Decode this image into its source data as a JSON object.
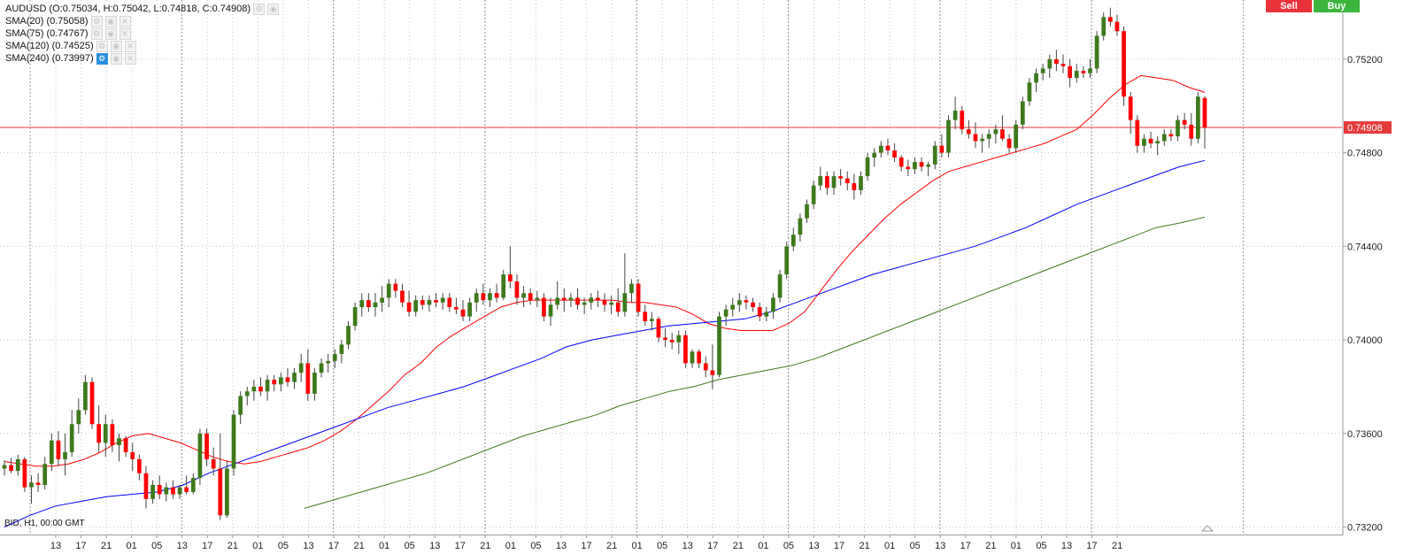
{
  "legend": {
    "instrument": "AUDUSD (O:0.75034, H:0.75042, L:0.74818, C:0.74908)",
    "sma20": "SMA(20) (0.75058)",
    "sma75": "SMA(75) (0.74767)",
    "sma120": "SMA(120) (0.74525)",
    "sma240": "SMA(240) (0.73997)"
  },
  "buttons": {
    "sell": "Sell",
    "buy": "Buy"
  },
  "footer": "BID, H1, 00:00 GMT",
  "colors": {
    "bull": "#3c7a1a",
    "bear": "#ff0000",
    "sma20": "#ff0000",
    "sma75": "#0000ff",
    "sma120": "#3c7a1a",
    "price_line": "#e53a3a",
    "price_tag": "#e53a3a"
  },
  "chart_data": {
    "type": "candlestick",
    "symbol": "AUDUSD",
    "timeframe": "H1",
    "y_ticks": [
      0.732,
      0.736,
      0.74,
      0.744,
      0.748,
      0.752
    ],
    "y_tick_labels": [
      "0.73200",
      "0.73600",
      "0.74000",
      "0.74400",
      "0.74800",
      "0.75200"
    ],
    "ylim": [
      0.73168,
      0.75453
    ],
    "current_price": 0.74908,
    "current_price_label": "0.74908",
    "x_tick_labels": [
      "13",
      "17",
      "21",
      "01",
      "05",
      "13",
      "17",
      "21",
      "01",
      "05",
      "13",
      "17",
      "21",
      "01",
      "05",
      "13",
      "17",
      "21",
      "01",
      "05",
      "13",
      "17",
      "21",
      "01",
      "05",
      "13",
      "17",
      "21",
      "01",
      "05",
      "13",
      "17",
      "21",
      "01",
      "05",
      "13",
      "17",
      "21",
      "01",
      "05",
      "13",
      "17",
      "21"
    ],
    "day_separators": 9,
    "grid": "dotted",
    "candles": [
      [
        0.7345,
        0.73485,
        0.7342,
        0.73465
      ],
      [
        0.73465,
        0.73495,
        0.7343,
        0.7344
      ],
      [
        0.7344,
        0.7351,
        0.7342,
        0.7349
      ],
      [
        0.7349,
        0.735,
        0.7335,
        0.7337
      ],
      [
        0.7337,
        0.7342,
        0.733,
        0.7339
      ],
      [
        0.7339,
        0.7343,
        0.7335,
        0.7338
      ],
      [
        0.7338,
        0.735,
        0.7336,
        0.7347
      ],
      [
        0.7347,
        0.736,
        0.7344,
        0.7357
      ],
      [
        0.7357,
        0.7361,
        0.7346,
        0.7349
      ],
      [
        0.7349,
        0.736,
        0.7342,
        0.7352
      ],
      [
        0.7352,
        0.737,
        0.735,
        0.7364
      ],
      [
        0.7364,
        0.7375,
        0.736,
        0.737
      ],
      [
        0.737,
        0.7385,
        0.7368,
        0.7382
      ],
      [
        0.7382,
        0.7384,
        0.7362,
        0.7364
      ],
      [
        0.7364,
        0.7372,
        0.7352,
        0.7356
      ],
      [
        0.7356,
        0.7368,
        0.735,
        0.7364
      ],
      [
        0.7364,
        0.7366,
        0.7352,
        0.7355
      ],
      [
        0.7355,
        0.736,
        0.7348,
        0.7358
      ],
      [
        0.7358,
        0.7359,
        0.735,
        0.7352
      ],
      [
        0.7352,
        0.7356,
        0.7344,
        0.7349
      ],
      [
        0.7349,
        0.7351,
        0.734,
        0.7343
      ],
      [
        0.7343,
        0.7346,
        0.7328,
        0.7332
      ],
      [
        0.7332,
        0.734,
        0.733,
        0.7338
      ],
      [
        0.7338,
        0.7342,
        0.7332,
        0.7334
      ],
      [
        0.7334,
        0.7339,
        0.7331,
        0.7337
      ],
      [
        0.7337,
        0.734,
        0.7332,
        0.7334
      ],
      [
        0.7334,
        0.7338,
        0.7332,
        0.7337
      ],
      [
        0.7337,
        0.7342,
        0.7334,
        0.7335
      ],
      [
        0.7335,
        0.7343,
        0.7334,
        0.7341
      ],
      [
        0.7341,
        0.7362,
        0.7338,
        0.736
      ],
      [
        0.736,
        0.7362,
        0.7346,
        0.7349
      ],
      [
        0.7349,
        0.7354,
        0.7342,
        0.7345
      ],
      [
        0.7345,
        0.736,
        0.7323,
        0.7325
      ],
      [
        0.7325,
        0.7348,
        0.7324,
        0.7345
      ],
      [
        0.7345,
        0.737,
        0.7342,
        0.7368
      ],
      [
        0.7368,
        0.7378,
        0.7364,
        0.7376
      ],
      [
        0.7376,
        0.738,
        0.7372,
        0.7378
      ],
      [
        0.7378,
        0.7383,
        0.7374,
        0.738
      ],
      [
        0.738,
        0.7384,
        0.7376,
        0.7378
      ],
      [
        0.7378,
        0.7385,
        0.7374,
        0.7383
      ],
      [
        0.7383,
        0.7385,
        0.7378,
        0.7381
      ],
      [
        0.7381,
        0.7386,
        0.7378,
        0.7384
      ],
      [
        0.7384,
        0.7388,
        0.738,
        0.7382
      ],
      [
        0.7382,
        0.7388,
        0.7379,
        0.7386
      ],
      [
        0.7386,
        0.7394,
        0.7382,
        0.739
      ],
      [
        0.739,
        0.7396,
        0.7374,
        0.7377
      ],
      [
        0.7377,
        0.7388,
        0.7374,
        0.7386
      ],
      [
        0.7386,
        0.7392,
        0.7384,
        0.739
      ],
      [
        0.739,
        0.7394,
        0.7386,
        0.7391
      ],
      [
        0.7391,
        0.7396,
        0.7388,
        0.7394
      ],
      [
        0.7394,
        0.74,
        0.739,
        0.7398
      ],
      [
        0.7398,
        0.7408,
        0.7396,
        0.7406
      ],
      [
        0.7406,
        0.7416,
        0.7404,
        0.7414
      ],
      [
        0.7414,
        0.742,
        0.741,
        0.7417
      ],
      [
        0.7417,
        0.742,
        0.7412,
        0.7414
      ],
      [
        0.7414,
        0.742,
        0.741,
        0.7416
      ],
      [
        0.7416,
        0.7423,
        0.7412,
        0.7418
      ],
      [
        0.7418,
        0.7426,
        0.7414,
        0.7424
      ],
      [
        0.7424,
        0.7426,
        0.7418,
        0.7421
      ],
      [
        0.7421,
        0.7424,
        0.7414,
        0.7416
      ],
      [
        0.7416,
        0.7421,
        0.741,
        0.7412
      ],
      [
        0.7412,
        0.7419,
        0.741,
        0.7417
      ],
      [
        0.7417,
        0.7419,
        0.7413,
        0.7415
      ],
      [
        0.7415,
        0.7419,
        0.7412,
        0.7417
      ],
      [
        0.7417,
        0.742,
        0.7414,
        0.7416
      ],
      [
        0.7416,
        0.742,
        0.7413,
        0.7418
      ],
      [
        0.7418,
        0.742,
        0.7412,
        0.7414
      ],
      [
        0.7414,
        0.7418,
        0.7411,
        0.7413
      ],
      [
        0.7413,
        0.7417,
        0.7408,
        0.741
      ],
      [
        0.741,
        0.7418,
        0.7408,
        0.7416
      ],
      [
        0.7416,
        0.7422,
        0.7412,
        0.742
      ],
      [
        0.742,
        0.7424,
        0.7415,
        0.7417
      ],
      [
        0.7417,
        0.7422,
        0.7414,
        0.742
      ],
      [
        0.742,
        0.7424,
        0.7416,
        0.7418
      ],
      [
        0.7418,
        0.743,
        0.7417,
        0.7428
      ],
      [
        0.7428,
        0.744,
        0.7422,
        0.7425
      ],
      [
        0.7425,
        0.7428,
        0.7415,
        0.7418
      ],
      [
        0.7418,
        0.7423,
        0.7414,
        0.742
      ],
      [
        0.742,
        0.7422,
        0.7415,
        0.7417
      ],
      [
        0.7417,
        0.7421,
        0.7414,
        0.7418
      ],
      [
        0.7418,
        0.742,
        0.7408,
        0.741
      ],
      [
        0.741,
        0.7418,
        0.7406,
        0.7415
      ],
      [
        0.7415,
        0.7425,
        0.7413,
        0.7418
      ],
      [
        0.7418,
        0.7422,
        0.7412,
        0.7417
      ],
      [
        0.7417,
        0.742,
        0.7414,
        0.7418
      ],
      [
        0.7418,
        0.7422,
        0.7413,
        0.7415
      ],
      [
        0.7415,
        0.7418,
        0.7411,
        0.7416
      ],
      [
        0.7416,
        0.742,
        0.7413,
        0.7418
      ],
      [
        0.7418,
        0.7421,
        0.7414,
        0.7417
      ],
      [
        0.7417,
        0.742,
        0.7412,
        0.7415
      ],
      [
        0.7415,
        0.7419,
        0.7411,
        0.7416
      ],
      [
        0.7416,
        0.7422,
        0.741,
        0.7412
      ],
      [
        0.7412,
        0.7437,
        0.741,
        0.742
      ],
      [
        0.742,
        0.7426,
        0.7416,
        0.7424
      ],
      [
        0.7424,
        0.7426,
        0.741,
        0.7412
      ],
      [
        0.7412,
        0.7415,
        0.7406,
        0.7408
      ],
      [
        0.7408,
        0.7412,
        0.7404,
        0.7409
      ],
      [
        0.7409,
        0.741,
        0.7399,
        0.7401
      ],
      [
        0.7401,
        0.7405,
        0.7397,
        0.74
      ],
      [
        0.74,
        0.7403,
        0.7396,
        0.7399
      ],
      [
        0.7399,
        0.7404,
        0.7394,
        0.7402
      ],
      [
        0.7402,
        0.7404,
        0.7388,
        0.739
      ],
      [
        0.739,
        0.7396,
        0.7388,
        0.7395
      ],
      [
        0.7395,
        0.7396,
        0.7388,
        0.739
      ],
      [
        0.739,
        0.7393,
        0.7384,
        0.7387
      ],
      [
        0.7387,
        0.7398,
        0.7379,
        0.7385
      ],
      [
        0.7385,
        0.7412,
        0.7384,
        0.741
      ],
      [
        0.741,
        0.7415,
        0.7406,
        0.7413
      ],
      [
        0.7413,
        0.7418,
        0.741,
        0.7415
      ],
      [
        0.7415,
        0.742,
        0.7412,
        0.7417
      ],
      [
        0.7417,
        0.7419,
        0.7413,
        0.7416
      ],
      [
        0.7416,
        0.7418,
        0.7412,
        0.7414
      ],
      [
        0.7414,
        0.7416,
        0.7408,
        0.741
      ],
      [
        0.741,
        0.7414,
        0.7408,
        0.7412
      ],
      [
        0.7412,
        0.742,
        0.7409,
        0.7418
      ],
      [
        0.7418,
        0.743,
        0.7416,
        0.7428
      ],
      [
        0.7428,
        0.7442,
        0.7426,
        0.744
      ],
      [
        0.744,
        0.7448,
        0.7438,
        0.7445
      ],
      [
        0.7445,
        0.7454,
        0.7442,
        0.7452
      ],
      [
        0.7452,
        0.746,
        0.745,
        0.7458
      ],
      [
        0.7458,
        0.7468,
        0.7456,
        0.7466
      ],
      [
        0.7466,
        0.7474,
        0.7464,
        0.747
      ],
      [
        0.747,
        0.7472,
        0.7462,
        0.7465
      ],
      [
        0.7465,
        0.7472,
        0.7462,
        0.747
      ],
      [
        0.747,
        0.7473,
        0.7466,
        0.7469
      ],
      [
        0.7469,
        0.7472,
        0.7464,
        0.7467
      ],
      [
        0.7467,
        0.7471,
        0.746,
        0.7464
      ],
      [
        0.7464,
        0.7472,
        0.7462,
        0.747
      ],
      [
        0.747,
        0.748,
        0.7468,
        0.7478
      ],
      [
        0.7478,
        0.7482,
        0.7474,
        0.748
      ],
      [
        0.748,
        0.7485,
        0.7478,
        0.7483
      ],
      [
        0.7483,
        0.7486,
        0.7479,
        0.7481
      ],
      [
        0.7481,
        0.7484,
        0.7476,
        0.7478
      ],
      [
        0.7478,
        0.7479,
        0.7472,
        0.7474
      ],
      [
        0.7474,
        0.7477,
        0.747,
        0.7473
      ],
      [
        0.7473,
        0.7478,
        0.7471,
        0.7476
      ],
      [
        0.7476,
        0.7478,
        0.7472,
        0.7474
      ],
      [
        0.7474,
        0.7476,
        0.747,
        0.7475
      ],
      [
        0.7475,
        0.7485,
        0.7473,
        0.7483
      ],
      [
        0.7483,
        0.7488,
        0.7478,
        0.748
      ],
      [
        0.748,
        0.7496,
        0.7478,
        0.7494
      ],
      [
        0.7494,
        0.7504,
        0.749,
        0.7498
      ],
      [
        0.7498,
        0.75,
        0.7488,
        0.749
      ],
      [
        0.749,
        0.7494,
        0.7486,
        0.7488
      ],
      [
        0.7488,
        0.7493,
        0.7482,
        0.7485
      ],
      [
        0.7485,
        0.7488,
        0.748,
        0.7486
      ],
      [
        0.7486,
        0.749,
        0.7482,
        0.7488
      ],
      [
        0.7488,
        0.7492,
        0.7484,
        0.749
      ],
      [
        0.749,
        0.7496,
        0.7485,
        0.7486
      ],
      [
        0.7486,
        0.7488,
        0.748,
        0.7482
      ],
      [
        0.7482,
        0.7494,
        0.748,
        0.7492
      ],
      [
        0.7492,
        0.7504,
        0.749,
        0.7502
      ],
      [
        0.7502,
        0.7512,
        0.75,
        0.751
      ],
      [
        0.751,
        0.7516,
        0.7506,
        0.7514
      ],
      [
        0.7514,
        0.7518,
        0.7511,
        0.7516
      ],
      [
        0.7516,
        0.7522,
        0.7512,
        0.752
      ],
      [
        0.752,
        0.7524,
        0.7515,
        0.7518
      ],
      [
        0.7518,
        0.7522,
        0.7514,
        0.7517
      ],
      [
        0.7517,
        0.752,
        0.7508,
        0.7512
      ],
      [
        0.7512,
        0.7518,
        0.751,
        0.7515
      ],
      [
        0.7515,
        0.7517,
        0.7512,
        0.7514
      ],
      [
        0.7514,
        0.752,
        0.7512,
        0.7516
      ],
      [
        0.7516,
        0.7532,
        0.7514,
        0.753
      ],
      [
        0.753,
        0.754,
        0.7528,
        0.7538
      ],
      [
        0.7538,
        0.7542,
        0.7534,
        0.7536
      ],
      [
        0.7536,
        0.7539,
        0.753,
        0.7532
      ],
      [
        0.7532,
        0.7534,
        0.75,
        0.7504
      ],
      [
        0.7504,
        0.7506,
        0.7488,
        0.7494
      ],
      [
        0.7494,
        0.7496,
        0.748,
        0.7483
      ],
      [
        0.7483,
        0.7488,
        0.748,
        0.7486
      ],
      [
        0.7486,
        0.7489,
        0.7482,
        0.7484
      ],
      [
        0.7484,
        0.7487,
        0.7479,
        0.7485
      ],
      [
        0.7485,
        0.749,
        0.7483,
        0.7488
      ],
      [
        0.7488,
        0.749,
        0.7485,
        0.7487
      ],
      [
        0.7487,
        0.7496,
        0.7485,
        0.7494
      ],
      [
        0.7494,
        0.7497,
        0.749,
        0.7492
      ],
      [
        0.7492,
        0.7497,
        0.7483,
        0.7486
      ],
      [
        0.7486,
        0.7506,
        0.7484,
        0.7504
      ],
      [
        0.75034,
        0.75042,
        0.74818,
        0.74908
      ]
    ],
    "sma20": [
      0.7348,
      0.7347,
      0.7346,
      0.7346,
      0.7347,
      0.7349,
      0.7352,
      0.7356,
      0.7359,
      0.736,
      0.7358,
      0.7356,
      0.7353,
      0.735,
      0.7348,
      0.7347,
      0.7348,
      0.735,
      0.7352,
      0.7354,
      0.7357,
      0.7361,
      0.7366,
      0.7372,
      0.7378,
      0.7385,
      0.739,
      0.7397,
      0.7402,
      0.7406,
      0.741,
      0.7414,
      0.7416,
      0.7417,
      0.7417,
      0.7417,
      0.7417,
      0.7417,
      0.7417,
      0.7416,
      0.7416,
      0.7415,
      0.7414,
      0.7411,
      0.7407,
      0.7405,
      0.7404,
      0.7404,
      0.7404,
      0.7407,
      0.7412,
      0.7421,
      0.743,
      0.7438,
      0.7445,
      0.7452,
      0.7458,
      0.7463,
      0.7468,
      0.7472,
      0.7474,
      0.7476,
      0.7478,
      0.748,
      0.7482,
      0.7484,
      0.7487,
      0.749,
      0.7496,
      0.7503,
      0.7509,
      0.7513,
      0.7512,
      0.7511,
      0.7508,
      0.75058
    ],
    "sma75": [
      0.732,
      0.7325,
      0.7329,
      0.7331,
      0.7333,
      0.7334,
      0.7335,
      0.7338,
      0.7343,
      0.7347,
      0.7351,
      0.7355,
      0.7359,
      0.7363,
      0.7367,
      0.7371,
      0.7374,
      0.7377,
      0.738,
      0.7384,
      0.7388,
      0.7392,
      0.7397,
      0.74,
      0.7402,
      0.7404,
      0.7406,
      0.7407,
      0.7408,
      0.7409,
      0.7412,
      0.7416,
      0.742,
      0.7424,
      0.7428,
      0.7431,
      0.7434,
      0.7437,
      0.744,
      0.7444,
      0.7448,
      0.7453,
      0.7458,
      0.7462,
      0.7466,
      0.747,
      0.7474,
      0.74767
    ],
    "sma120": [
      0.7328,
      0.7331,
      0.7334,
      0.7337,
      0.734,
      0.7343,
      0.7347,
      0.7351,
      0.7355,
      0.7359,
      0.7362,
      0.7365,
      0.7368,
      0.7372,
      0.7375,
      0.7378,
      0.738,
      0.7383,
      0.7385,
      0.7387,
      0.7389,
      0.7392,
      0.7396,
      0.74,
      0.7404,
      0.7408,
      0.7412,
      0.7416,
      0.742,
      0.7424,
      0.7428,
      0.7432,
      0.7436,
      0.744,
      0.7444,
      0.7448,
      0.745,
      0.74525
    ]
  }
}
